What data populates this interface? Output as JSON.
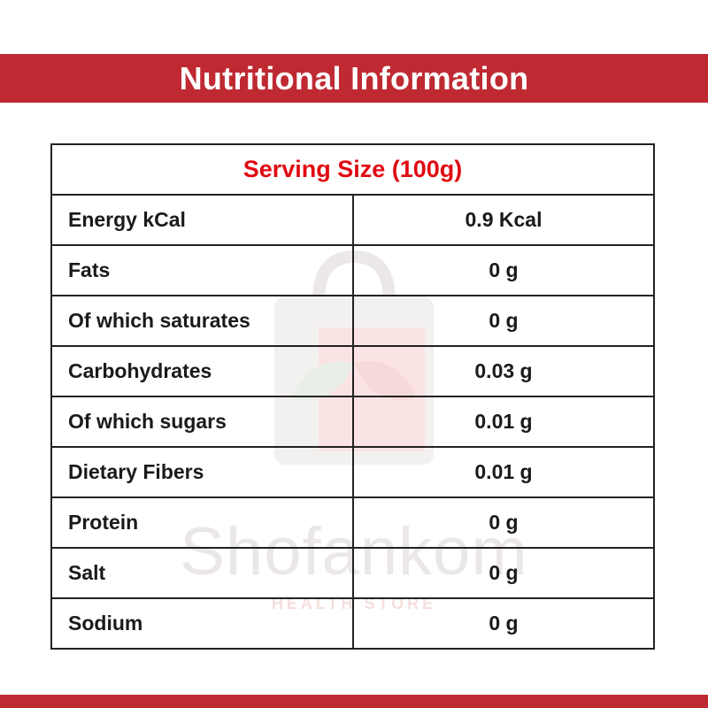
{
  "title": "Nutritional Information",
  "serving_size": "Serving Size (100g)",
  "watermark": {
    "brand": "Shofankom",
    "tagline": "HEALTH STORE"
  },
  "rows": [
    {
      "label": "Energy kCal",
      "value": "0.9 Kcal"
    },
    {
      "label": "Fats",
      "value": "0 g"
    },
    {
      "label": "Of which saturates",
      "value": "0 g"
    },
    {
      "label": "Carbohydrates",
      "value": "0.03 g"
    },
    {
      "label": "Of which sugars",
      "value": "0.01 g"
    },
    {
      "label": "Dietary Fibers",
      "value": "0.01 g"
    },
    {
      "label": "Protein",
      "value": "0 g"
    },
    {
      "label": "Salt",
      "value": "0 g"
    },
    {
      "label": "Sodium",
      "value": "0 g"
    }
  ],
  "colors": {
    "banner": "#bf2a32",
    "serving_text": "#e00b12",
    "border": "#222222"
  }
}
